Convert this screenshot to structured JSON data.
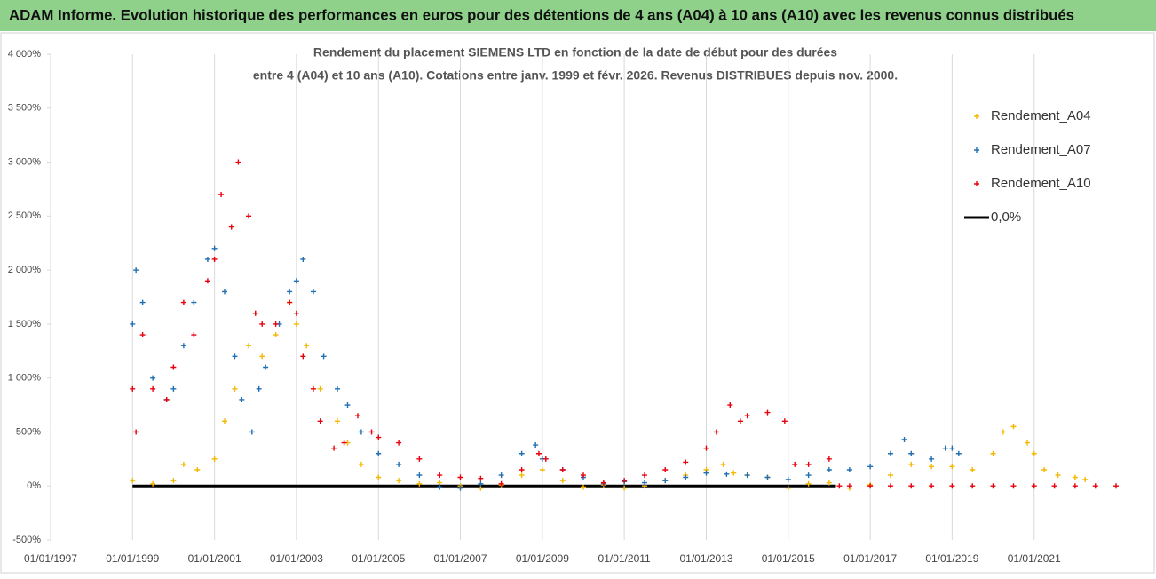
{
  "header": {
    "title": "ADAM Informe. Evolution historique des performances en euros pour des détentions de 4 ans (A04) à 10 ans (A10) avec les revenus connus distribués"
  },
  "chart_data": {
    "type": "scatter",
    "title_lines": [
      "Rendement du placement SIEMENS LTD en fonction de la date de début pour des durées",
      "entre 4 (A04) et 10 ans (A10). Cotations entre janv. 1999 et févr. 2026. Revenus DISTRIBUES depuis nov. 2000."
    ],
    "xlim": [
      "1997-01-01",
      "2023-01-01"
    ],
    "xticks": [
      {
        "value": "1997-01-01",
        "label": "01/01/1997"
      },
      {
        "value": "1999-01-01",
        "label": "01/01/1999"
      },
      {
        "value": "2001-01-01",
        "label": "01/01/2001"
      },
      {
        "value": "2003-01-01",
        "label": "01/01/2003"
      },
      {
        "value": "2005-01-01",
        "label": "01/01/2005"
      },
      {
        "value": "2007-01-01",
        "label": "01/01/2007"
      },
      {
        "value": "2009-01-01",
        "label": "01/01/2009"
      },
      {
        "value": "2011-01-01",
        "label": "01/01/2011"
      },
      {
        "value": "2013-01-01",
        "label": "01/01/2013"
      },
      {
        "value": "2015-01-01",
        "label": "01/01/2015"
      },
      {
        "value": "2017-01-01",
        "label": "01/01/2017"
      },
      {
        "value": "2019-01-01",
        "label": "01/01/2019"
      },
      {
        "value": "2021-01-01",
        "label": "01/01/2021"
      }
    ],
    "ylim": [
      -500,
      4000
    ],
    "yticks": [
      {
        "value": -500,
        "label": "-500%"
      },
      {
        "value": 0,
        "label": "0%"
      },
      {
        "value": 500,
        "label": "500%"
      },
      {
        "value": 1000,
        "label": "1 000%"
      },
      {
        "value": 1500,
        "label": "1 500%"
      },
      {
        "value": 2000,
        "label": "2 000%"
      },
      {
        "value": 2500,
        "label": "2 500%"
      },
      {
        "value": 3000,
        "label": "3 000%"
      },
      {
        "value": 3500,
        "label": "3 500%"
      },
      {
        "value": 4000,
        "label": "4 000%"
      }
    ],
    "grid": "x",
    "legend": "upper right",
    "series": [
      {
        "name": "Rendement_A04",
        "color": "#f5b800",
        "mode": "markers",
        "x": [
          "1999-01-01",
          "1999-07-01",
          "2000-01-01",
          "2000-04-01",
          "2000-08-01",
          "2001-01-01",
          "2001-04-01",
          "2001-07-01",
          "2001-11-01",
          "2002-01-01",
          "2002-03-01",
          "2002-07-01",
          "2002-11-01",
          "2003-01-01",
          "2003-04-01",
          "2003-08-01",
          "2004-01-01",
          "2004-04-01",
          "2004-08-01",
          "2005-01-01",
          "2005-07-01",
          "2006-01-01",
          "2006-07-01",
          "2007-01-01",
          "2007-07-01",
          "2008-01-01",
          "2008-07-01",
          "2009-01-01",
          "2009-07-01",
          "2010-01-01",
          "2010-07-01",
          "2011-01-01",
          "2011-07-01",
          "2012-01-01",
          "2012-07-01",
          "2013-01-01",
          "2013-06-01",
          "2013-09-01",
          "2014-01-01",
          "2014-07-01",
          "2015-01-01",
          "2015-07-01",
          "2016-01-01",
          "2016-07-01",
          "2017-01-01",
          "2017-07-01",
          "2018-01-01",
          "2018-07-01",
          "2019-01-01",
          "2019-07-01",
          "2020-01-01",
          "2020-04-01",
          "2020-07-01",
          "2020-11-01",
          "2021-01-01",
          "2021-04-01",
          "2021-08-01",
          "2022-01-01",
          "2022-04-01"
        ],
        "values": [
          50,
          20,
          50,
          200,
          150,
          250,
          600,
          900,
          1300,
          1600,
          1200,
          1400,
          1700,
          1500,
          1300,
          900,
          600,
          400,
          200,
          80,
          50,
          20,
          30,
          0,
          -20,
          10,
          100,
          150,
          50,
          -10,
          10,
          -20,
          0,
          50,
          100,
          150,
          200,
          120,
          100,
          80,
          -20,
          20,
          30,
          -20,
          10,
          100,
          200,
          180,
          180,
          150,
          300,
          500,
          550,
          400,
          300,
          150,
          100,
          80,
          60
        ]
      },
      {
        "name": "Rendement_A07",
        "color": "#1f6fb2",
        "mode": "markers",
        "x": [
          "1999-01-01",
          "1999-02-01",
          "1999-04-01",
          "1999-07-01",
          "1999-11-01",
          "2000-01-01",
          "2000-04-01",
          "2000-07-01",
          "2000-11-01",
          "2001-01-01",
          "2001-04-01",
          "2001-07-01",
          "2001-09-01",
          "2001-12-01",
          "2002-02-01",
          "2002-04-01",
          "2002-08-01",
          "2002-11-01",
          "2003-01-01",
          "2003-03-01",
          "2003-06-01",
          "2003-09-01",
          "2004-01-01",
          "2004-04-01",
          "2004-08-01",
          "2005-01-01",
          "2005-07-01",
          "2006-01-01",
          "2006-07-01",
          "2007-01-01",
          "2007-07-01",
          "2008-01-01",
          "2008-07-01",
          "2008-11-01",
          "2009-01-01",
          "2009-07-01",
          "2010-01-01",
          "2010-07-01",
          "2011-01-01",
          "2011-07-01",
          "2012-01-01",
          "2012-07-01",
          "2013-01-01",
          "2013-07-01",
          "2014-01-01",
          "2014-07-01",
          "2015-01-01",
          "2015-07-01",
          "2016-01-01",
          "2016-07-01",
          "2017-01-01",
          "2017-07-01",
          "2017-11-01",
          "2018-01-01",
          "2018-07-01",
          "2018-11-01",
          "2019-01-01",
          "2019-03-01"
        ],
        "values": [
          1500,
          2000,
          1700,
          1000,
          800,
          900,
          1300,
          1700,
          2100,
          2200,
          1800,
          1200,
          800,
          500,
          900,
          1100,
          1500,
          1800,
          1900,
          2100,
          1800,
          1200,
          900,
          750,
          500,
          300,
          200,
          100,
          -10,
          -20,
          20,
          100,
          300,
          380,
          250,
          150,
          80,
          20,
          40,
          30,
          50,
          80,
          120,
          110,
          100,
          80,
          60,
          100,
          150,
          150,
          180,
          300,
          430,
          300,
          250,
          350,
          350,
          300
        ]
      },
      {
        "name": "Rendement_A10",
        "color": "#e8000b",
        "mode": "markers",
        "x": [
          "1999-01-01",
          "1999-02-01",
          "1999-04-01",
          "1999-07-01",
          "1999-11-01",
          "2000-01-01",
          "2000-04-01",
          "2000-07-01",
          "2000-11-01",
          "2001-01-01",
          "2001-03-01",
          "2001-06-01",
          "2001-08-01",
          "2001-11-01",
          "2002-01-01",
          "2002-03-01",
          "2002-07-01",
          "2002-11-01",
          "2003-01-01",
          "2003-03-01",
          "2003-06-01",
          "2003-08-01",
          "2003-12-01",
          "2004-03-01",
          "2004-07-01",
          "2004-11-01",
          "2005-01-01",
          "2005-07-01",
          "2006-01-01",
          "2006-07-01",
          "2007-01-01",
          "2007-07-01",
          "2008-01-01",
          "2008-07-01",
          "2008-12-01",
          "2009-02-01",
          "2009-07-01",
          "2010-01-01",
          "2010-07-01",
          "2011-01-01",
          "2011-07-01",
          "2012-01-01",
          "2012-07-01",
          "2013-01-01",
          "2013-04-01",
          "2013-08-01",
          "2013-11-01",
          "2014-01-01",
          "2014-07-01",
          "2014-12-01",
          "2015-03-01",
          "2015-07-01",
          "2016-01-01",
          "2016-04-01",
          "2016-07-01",
          "2017-01-01",
          "2017-07-01",
          "2018-01-01",
          "2018-07-01",
          "2019-01-01",
          "2019-07-01",
          "2020-01-01",
          "2020-07-01",
          "2021-01-01",
          "2021-07-01",
          "2022-01-01",
          "2022-07-01",
          "2023-01-01"
        ],
        "values": [
          900,
          500,
          1400,
          900,
          800,
          1100,
          1700,
          1400,
          1900,
          2100,
          2700,
          2400,
          3000,
          2500,
          1600,
          1500,
          1500,
          1700,
          1600,
          1200,
          900,
          600,
          350,
          400,
          650,
          500,
          450,
          400,
          250,
          100,
          80,
          70,
          20,
          150,
          300,
          250,
          150,
          100,
          30,
          50,
          100,
          150,
          220,
          350,
          500,
          750,
          600,
          650,
          680,
          600,
          200,
          200,
          250,
          0,
          0,
          0,
          0,
          0,
          0,
          0,
          0,
          0,
          0,
          0,
          0,
          0,
          0,
          0
        ]
      },
      {
        "name": "0,0%",
        "color": "#000000",
        "mode": "line",
        "x": [
          "1999-01-01",
          "2016-03-01"
        ],
        "values": [
          0,
          0
        ]
      }
    ]
  }
}
